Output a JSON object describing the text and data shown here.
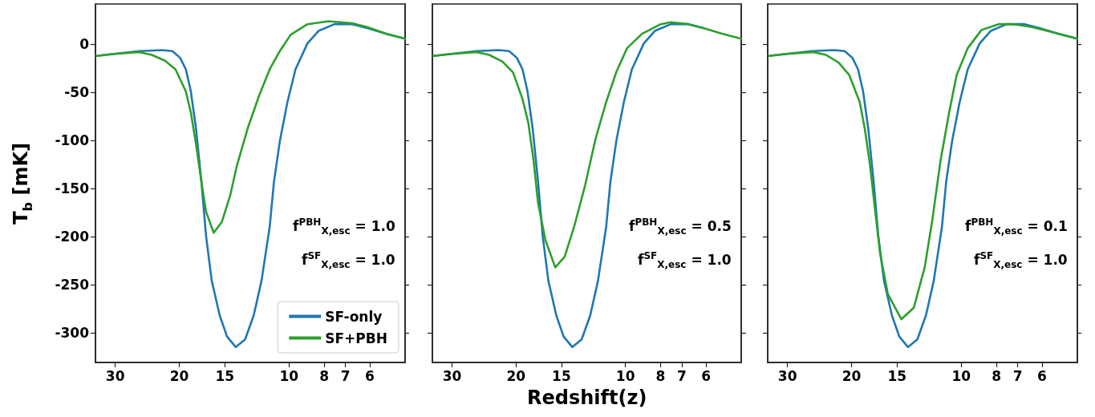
{
  "chart_data": [
    {
      "type": "line",
      "ylabel": "T$_{b}$ [mK]",
      "annotations": [
        "f$^{PBH}$$_{X,esc}$ = 1.0",
        "f$^{SF}$$_{X,esc}$ = 1.0"
      ],
      "log": "x",
      "xlim": [
        34,
        4.8
      ],
      "ylim": [
        -331,
        42
      ],
      "xticks": [
        30,
        20,
        15,
        10,
        8,
        7,
        6
      ],
      "yticks": [
        -300,
        -250,
        -200,
        -150,
        -100,
        -50,
        0
      ],
      "legend": "bottom right",
      "marker": "none",
      "line_style": "solid",
      "series": [
        {
          "name": "SF-only",
          "color": "#1f77b4",
          "x": [
            33.8,
            30.2,
            25.8,
            22.3,
            20.9,
            19.9,
            19.2,
            18.6,
            18.0,
            17.4,
            16.9,
            16.3,
            15.5,
            14.8,
            14.0,
            13.2,
            12.5,
            11.9,
            11.3,
            11.0,
            10.6,
            10.1,
            9.6,
            8.9,
            8.3,
            7.5,
            6.7,
            6.1,
            5.4,
            4.8
          ],
          "values": [
            -12,
            -10,
            -7,
            -6,
            -7,
            -14,
            -26,
            -49,
            -88,
            -143,
            -199,
            -246,
            -282,
            -304,
            -315,
            -307,
            -282,
            -246,
            -190,
            -143,
            -101,
            -60,
            -26,
            1,
            14,
            21,
            21,
            17,
            11,
            6
          ]
        },
        {
          "name": "SF+PBH",
          "color": "#2ca02c",
          "x": [
            33.8,
            30.2,
            25.8,
            23.8,
            21.9,
            20.5,
            19.2,
            18.6,
            18.0,
            17.4,
            16.9,
            16.1,
            15.3,
            14.5,
            13.9,
            13.0,
            12.1,
            11.3,
            10.6,
            9.9,
            8.9,
            7.8,
            6.7,
            6.1,
            5.4,
            4.8
          ],
          "values": [
            -12,
            -10,
            -8,
            -11,
            -17,
            -26,
            -49,
            -71,
            -104,
            -143,
            -174,
            -196,
            -185,
            -157,
            -126,
            -88,
            -54,
            -26,
            -7,
            10,
            21,
            24,
            22,
            18,
            11,
            6
          ]
        }
      ]
    },
    {
      "type": "line",
      "xlabel": "Redshift(z)",
      "annotations": [
        "f$^{PBH}$$_{X,esc}$ = 0.5",
        "f$^{SF}$$_{X,esc}$ = 1.0"
      ],
      "log": "x",
      "xlim": [
        34,
        4.8
      ],
      "ylim": [
        -331,
        42
      ],
      "xticks": [
        30,
        20,
        15,
        10,
        8,
        7,
        6
      ],
      "yticks": [
        -300,
        -250,
        -200,
        -150,
        -100,
        -50,
        0
      ],
      "tick_labels": "x",
      "marker": "none",
      "line_style": "solid",
      "series": [
        {
          "color": "#1f77b4",
          "x": [
            33.8,
            30.2,
            25.8,
            22.3,
            20.9,
            19.9,
            19.2,
            18.6,
            18.0,
            17.4,
            16.9,
            16.3,
            15.5,
            14.8,
            14.0,
            13.2,
            12.5,
            11.9,
            11.3,
            11.0,
            10.6,
            10.1,
            9.6,
            8.9,
            8.3,
            7.5,
            6.7,
            6.1
          ],
          "values": [
            -12,
            -10,
            -7,
            -6,
            -7,
            -14,
            -26,
            -49,
            -88,
            -143,
            -199,
            -246,
            -282,
            -304,
            -315,
            -307,
            -282,
            -246,
            -190,
            -143,
            -101,
            -60,
            -26,
            1,
            14,
            21,
            21,
            17
          ]
        },
        {
          "color": "#2ca02c",
          "x": [
            33.8,
            30.0,
            25.7,
            23.7,
            21.8,
            20.4,
            19.2,
            18.5,
            17.9,
            17.4,
            16.6,
            15.6,
            14.7,
            13.8,
            12.9,
            12.1,
            11.3,
            10.6,
            9.9,
            9.0,
            8.0,
            7.5,
            6.7,
            6.1,
            5.4,
            4.8
          ],
          "values": [
            -12,
            -10,
            -8,
            -11,
            -18,
            -29,
            -57,
            -82,
            -121,
            -165,
            -204,
            -232,
            -221,
            -188,
            -146,
            -99,
            -60,
            -29,
            -4,
            11,
            21,
            23,
            21,
            17,
            11,
            6
          ]
        }
      ]
    },
    {
      "type": "line",
      "annotations": [
        "f$^{PBH}$$_{X,esc}$ = 0.1",
        "f$^{SF}$$_{X,esc}$ = 1.0"
      ],
      "log": "x",
      "xlim": [
        34,
        4.8
      ],
      "ylim": [
        -331,
        42
      ],
      "xticks": [
        30,
        20,
        15,
        10,
        8,
        7,
        6
      ],
      "yticks": [
        -300,
        -250,
        -200,
        -150,
        -100,
        -50,
        0
      ],
      "tick_labels": "x",
      "marker": "none",
      "line_style": "solid",
      "series": [
        {
          "color": "#1f77b4",
          "x": [
            33.8,
            30.2,
            25.8,
            22.3,
            20.9,
            19.9,
            19.2,
            18.6,
            18.0,
            17.4,
            16.9,
            16.3,
            15.5,
            14.8,
            14.0,
            13.2,
            12.5,
            11.9,
            11.3,
            11.0,
            10.6,
            10.1,
            9.6,
            8.9,
            8.3,
            7.5,
            6.7,
            6.1,
            5.4,
            4.8
          ],
          "values": [
            -12,
            -10,
            -7,
            -6,
            -7,
            -14,
            -26,
            -49,
            -88,
            -143,
            -199,
            -246,
            -282,
            -304,
            -315,
            -307,
            -282,
            -246,
            -190,
            -143,
            -101,
            -60,
            -26,
            1,
            14,
            21,
            21,
            17,
            11,
            6
          ]
        },
        {
          "color": "#2ca02c",
          "x": [
            33.8,
            30.2,
            25.5,
            23.5,
            21.7,
            20.3,
            19.0,
            18.4,
            17.8,
            17.2,
            16.7,
            15.9,
            14.6,
            13.5,
            12.6,
            12.0,
            11.4,
            10.8,
            10.3,
            9.6,
            8.8,
            7.9,
            7.2,
            6.4,
            5.8,
            4.8
          ],
          "values": [
            -12,
            -10,
            -8,
            -11,
            -19,
            -32,
            -60,
            -88,
            -126,
            -176,
            -218,
            -260,
            -286,
            -274,
            -232,
            -182,
            -121,
            -71,
            -32,
            -4,
            15,
            21,
            21,
            18,
            14,
            6
          ]
        }
      ]
    }
  ]
}
